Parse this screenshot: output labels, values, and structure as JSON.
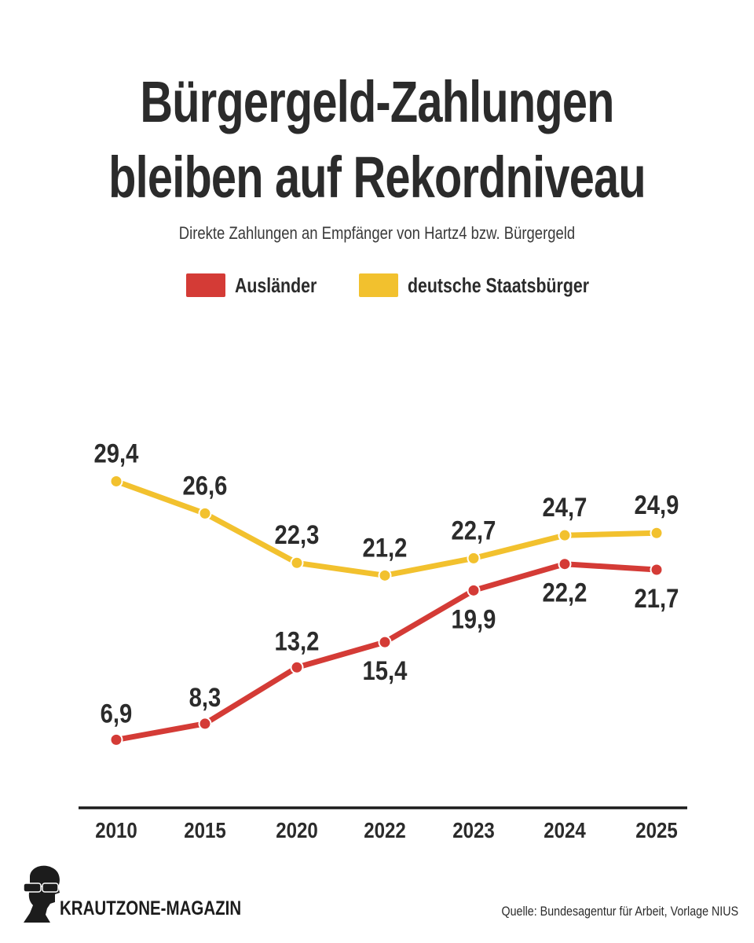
{
  "title_line1": "Bürgergeld-Zahlungen",
  "title_line2": "bleiben auf Rekordniveau",
  "subtitle": "Direkte Zahlungen an Empfänger von Hartz4 bzw. Bürgergeld",
  "colors": {
    "auslaender": "#d43b36",
    "deutsche": "#f2c12e",
    "text": "#2b2b2b"
  },
  "chart_data": {
    "type": "line",
    "categories": [
      "2010",
      "2015",
      "2020",
      "2022",
      "2023",
      "2024",
      "2025"
    ],
    "series": [
      {
        "name": "Ausländer",
        "color": "#d43b36",
        "values": [
          6.9,
          8.3,
          13.2,
          15.4,
          19.9,
          22.2,
          21.7
        ],
        "labels": [
          "6,9",
          "8,3",
          "13,2",
          "15,4",
          "19,9",
          "22,2",
          "21,7"
        ]
      },
      {
        "name": "deutsche Staatsbürger",
        "color": "#f2c12e",
        "values": [
          29.4,
          26.6,
          22.3,
          21.2,
          22.7,
          24.7,
          24.9
        ],
        "labels": [
          "29,4",
          "26,6",
          "22,3",
          "21,2",
          "22,7",
          "24,7",
          "24,9"
        ]
      }
    ],
    "legend_position": "top-center",
    "grid": false
  },
  "brand": "KRAUTZONE-MAGAZIN",
  "source": "Quelle: Bundesagentur für Arbeit, Vorlage NIUS"
}
